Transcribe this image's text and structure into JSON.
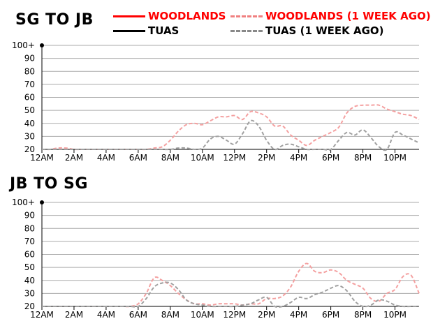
{
  "legend": {
    "woodlands": "WOODLANDS",
    "woodlands_week": "WOODLANDS (1 WEEK AGO)",
    "tuas": "TUAS",
    "tuas_week": "TUAS (1 WEEK AGO)"
  },
  "colors": {
    "woodlands": "#ff0000",
    "woodlands_week": "#f4a0a0",
    "tuas": "#000000",
    "tuas_week": "#a0a0a0",
    "grid": "#aaaaaa"
  },
  "chart_data": [
    {
      "type": "line",
      "title": "SG TO JB",
      "ylim": [
        20,
        100
      ],
      "yticks": [
        "20",
        "30",
        "40",
        "50",
        "60",
        "70",
        "80",
        "90",
        "100+"
      ],
      "xlim": [
        0,
        23.5
      ],
      "xticks": [
        0,
        2,
        4,
        6,
        8,
        10,
        12,
        14,
        16,
        18,
        20,
        22
      ],
      "xtick_labels": [
        "12AM",
        "2AM",
        "4AM",
        "6AM",
        "8AM",
        "10AM",
        "12PM",
        "2PM",
        "4PM",
        "6PM",
        "8PM",
        "10PM"
      ],
      "grid": true,
      "series": [
        {
          "name": "WOODLANDS (1 WEEK AGO)",
          "x": [
            0,
            0.5,
            1,
            1.5,
            2,
            2.5,
            3,
            3.5,
            4,
            4.5,
            5,
            5.5,
            6,
            6.5,
            7,
            7.5,
            8,
            8.5,
            9,
            9.5,
            10,
            10.5,
            11,
            11.5,
            12,
            12.5,
            13,
            13.5,
            14,
            14.5,
            15,
            15.5,
            16,
            16.5,
            17,
            17.5,
            18,
            18.5,
            19,
            19.5,
            20,
            20.5,
            21,
            21.5,
            22,
            22.5,
            23,
            23.5
          ],
          "values": [
            20,
            20,
            21,
            21,
            20,
            20,
            20,
            20,
            20,
            20,
            20,
            20,
            20,
            20,
            21,
            22,
            27,
            34,
            39,
            40,
            39,
            42,
            45,
            45,
            46,
            43,
            49,
            48,
            45,
            38,
            38,
            31,
            27,
            23,
            27,
            30,
            33,
            37,
            48,
            53,
            54,
            54,
            54,
            51,
            49,
            47,
            46,
            43
          ]
        },
        {
          "name": "TUAS (1 WEEK AGO)",
          "x": [
            0,
            0.5,
            1,
            1.5,
            2,
            2.5,
            3,
            3.5,
            4,
            4.5,
            5,
            5.5,
            6,
            6.5,
            7,
            7.5,
            8,
            8.5,
            9,
            9.5,
            10,
            10.5,
            11,
            11.5,
            12,
            12.5,
            13,
            13.5,
            14,
            14.5,
            15,
            15.5,
            16,
            16.5,
            17,
            17.5,
            18,
            18.5,
            19,
            19.5,
            20,
            20.5,
            21,
            21.5,
            22,
            22.5,
            23,
            23.5
          ],
          "values": [
            20,
            20,
            20,
            20,
            20,
            20,
            20,
            20,
            20,
            20,
            20,
            20,
            20,
            20,
            20,
            20,
            20,
            21,
            21,
            20,
            21,
            28,
            30,
            27,
            24,
            32,
            42,
            38,
            27,
            20,
            23,
            24,
            22,
            20,
            20,
            20,
            20,
            27,
            33,
            31,
            35,
            29,
            22,
            20,
            33,
            31,
            28,
            25
          ]
        }
      ]
    },
    {
      "type": "line",
      "title": "JB TO SG",
      "ylim": [
        20,
        100
      ],
      "yticks": [
        "20",
        "30",
        "40",
        "50",
        "60",
        "70",
        "80",
        "90",
        "100+"
      ],
      "xlim": [
        0,
        23.5
      ],
      "xticks": [
        0,
        2,
        4,
        6,
        8,
        10,
        12,
        14,
        16,
        18,
        20,
        22
      ],
      "xtick_labels": [
        "12AM",
        "2AM",
        "4AM",
        "6AM",
        "8AM",
        "10AM",
        "12PM",
        "2PM",
        "4PM",
        "6PM",
        "8PM",
        "10PM"
      ],
      "grid": true,
      "series": [
        {
          "name": "WOODLANDS (1 WEEK AGO)",
          "x": [
            0,
            0.5,
            1,
            1.5,
            2,
            2.5,
            3,
            3.5,
            4,
            4.5,
            5,
            5.5,
            6,
            6.5,
            7,
            7.5,
            8,
            8.5,
            9,
            9.5,
            10,
            10.5,
            11,
            11.5,
            12,
            12.5,
            13,
            13.5,
            14,
            14.5,
            15,
            15.5,
            16,
            16.5,
            17,
            17.5,
            18,
            18.5,
            19,
            19.5,
            20,
            20.5,
            21,
            21.5,
            22,
            22.5,
            23,
            23.5
          ],
          "values": [
            20,
            20,
            20,
            20,
            20,
            20,
            20,
            20,
            20,
            20,
            20,
            20,
            22,
            30,
            42,
            40,
            36,
            30,
            25,
            22,
            22,
            21,
            22,
            22,
            22,
            21,
            22,
            22,
            26,
            26,
            28,
            35,
            47,
            53,
            47,
            46,
            48,
            46,
            40,
            37,
            34,
            26,
            24,
            30,
            33,
            43,
            44,
            30
          ]
        },
        {
          "name": "TUAS (1 WEEK AGO)",
          "x": [
            0,
            0.5,
            1,
            1.5,
            2,
            2.5,
            3,
            3.5,
            4,
            4.5,
            5,
            5.5,
            6,
            6.5,
            7,
            7.5,
            8,
            8.5,
            9,
            9.5,
            10,
            10.5,
            11,
            11.5,
            12,
            12.5,
            13,
            13.5,
            14,
            14.5,
            15,
            15.5,
            16,
            16.5,
            17,
            17.5,
            18,
            18.5,
            19,
            19.5,
            20,
            20.5,
            21,
            21.5,
            22,
            22.5,
            23,
            23.5
          ],
          "values": [
            20,
            20,
            20,
            20,
            20,
            20,
            20,
            20,
            20,
            20,
            20,
            20,
            20,
            26,
            35,
            38,
            38,
            33,
            25,
            22,
            21,
            20,
            20,
            20,
            20,
            21,
            22,
            25,
            27,
            20,
            20,
            23,
            27,
            26,
            29,
            31,
            34,
            36,
            32,
            24,
            20,
            21,
            25,
            24,
            21,
            20,
            20,
            20
          ]
        }
      ]
    }
  ]
}
